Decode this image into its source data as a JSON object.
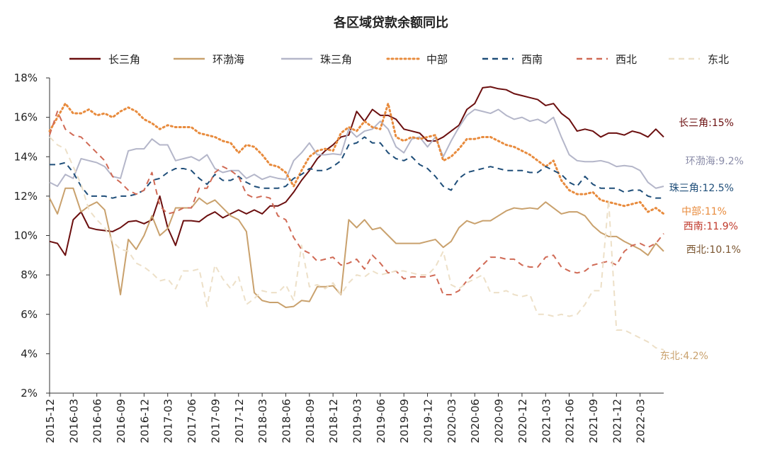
{
  "chart_data": {
    "type": "line",
    "title": "各区域贷款余额同比",
    "xlabel": "",
    "ylabel": "",
    "y_unit": "%",
    "ylim": [
      2,
      18
    ],
    "y_ticks": [
      "2%",
      "4%",
      "6%",
      "8%",
      "10%",
      "12%",
      "14%",
      "16%",
      "18%"
    ],
    "x_tick_labels": [
      "2015-12",
      "2016-03",
      "2016-06",
      "2016-09",
      "2016-12",
      "2017-03",
      "2017-06",
      "2017-09",
      "2017-12",
      "2018-03",
      "2018-06",
      "2018-09",
      "2018-12",
      "2019-03",
      "2019-06",
      "2019-09",
      "2019-12",
      "2020-03",
      "2020-06",
      "2020-09",
      "2020-12",
      "2021-03",
      "2021-06",
      "2021-09",
      "2021-12",
      "2022-03"
    ],
    "x_start": "2015-12",
    "x_end": "2022-04",
    "grid": false,
    "legend_position": "top",
    "series": [
      {
        "name": "长三角",
        "color": "#6b0f0f",
        "style": "solid",
        "end_label": "长三角:15%",
        "values": [
          9.7,
          9.6,
          9.0,
          10.8,
          11.2,
          10.4,
          10.3,
          10.25,
          10.2,
          10.4,
          10.7,
          10.75,
          10.6,
          10.8,
          12.0,
          10.4,
          9.5,
          10.75,
          10.75,
          10.7,
          11.0,
          11.2,
          10.9,
          11.1,
          11.3,
          11.1,
          11.3,
          11.1,
          11.5,
          11.5,
          11.7,
          12.2,
          12.8,
          13.3,
          13.9,
          14.3,
          14.6,
          15.0,
          15.1,
          16.3,
          15.8,
          16.4,
          16.1,
          16.1,
          15.9,
          15.4,
          15.3,
          15.2,
          14.8,
          14.8,
          15.0,
          15.3,
          15.6,
          16.4,
          16.7,
          17.5,
          17.55,
          17.45,
          17.4,
          17.2,
          17.1,
          17.0,
          16.9,
          16.6,
          16.7,
          16.2,
          15.9,
          15.3,
          15.4,
          15.3,
          15.0,
          15.2,
          15.2,
          15.1,
          15.3,
          15.2,
          15.0,
          15.4,
          15.0
        ]
      },
      {
        "name": "环渤海",
        "color": "#c9a16d",
        "style": "solid",
        "end_label": "环渤海:9.2%",
        "values": [
          11.9,
          11.1,
          12.4,
          12.4,
          11.2,
          11.5,
          11.7,
          11.3,
          9.5,
          7.0,
          9.8,
          9.3,
          10.0,
          11.0,
          10.0,
          10.35,
          11.4,
          11.4,
          11.4,
          11.9,
          11.6,
          11.8,
          11.4,
          11.0,
          10.8,
          10.2,
          7.1,
          6.7,
          6.6,
          6.6,
          6.35,
          6.4,
          6.7,
          6.65,
          7.4,
          7.4,
          7.45,
          7.0,
          10.8,
          10.4,
          10.8,
          10.3,
          10.4,
          10.0,
          9.6,
          9.6,
          9.6,
          9.6,
          9.7,
          9.8,
          9.4,
          9.7,
          10.4,
          10.75,
          10.6,
          10.75,
          10.75,
          11.0,
          11.25,
          11.4,
          11.35,
          11.4,
          11.35,
          11.7,
          11.4,
          11.1,
          11.2,
          11.2,
          11.0,
          10.5,
          10.15,
          9.95,
          9.95,
          9.7,
          9.5,
          9.3,
          9.0,
          9.6,
          9.2
        ]
      },
      {
        "name": "珠三角",
        "color": "#b4b6c9",
        "style": "solid",
        "end_label": "珠三角:12.5%",
        "values": [
          12.7,
          12.5,
          13.1,
          12.9,
          13.9,
          13.8,
          13.7,
          13.5,
          13.0,
          12.9,
          14.3,
          14.4,
          14.4,
          14.9,
          14.6,
          14.6,
          13.8,
          13.9,
          14.0,
          13.8,
          14.1,
          13.4,
          13.2,
          13.3,
          13.3,
          12.9,
          13.1,
          12.85,
          13.0,
          12.9,
          12.85,
          13.8,
          14.2,
          14.7,
          14.1,
          14.1,
          14.15,
          14.1,
          15.4,
          15.0,
          15.3,
          15.4,
          15.8,
          15.4,
          14.5,
          14.2,
          14.9,
          15.0,
          14.5,
          15.0,
          14.0,
          14.8,
          15.5,
          16.1,
          16.4,
          16.3,
          16.2,
          16.4,
          16.1,
          15.9,
          16.0,
          15.8,
          15.9,
          15.7,
          16.0,
          15.0,
          14.1,
          13.8,
          13.75,
          13.75,
          13.8,
          13.7,
          13.5,
          13.55,
          13.5,
          13.3,
          12.7,
          12.4,
          12.5
        ]
      },
      {
        "name": "中部",
        "color": "#e88b3d",
        "style": "dotted",
        "end_label": "中部:11%",
        "values": [
          15.3,
          16.0,
          16.7,
          16.2,
          16.2,
          16.4,
          16.1,
          16.2,
          16.0,
          16.3,
          16.5,
          16.3,
          15.9,
          15.7,
          15.4,
          15.6,
          15.5,
          15.5,
          15.5,
          15.2,
          15.1,
          15.0,
          14.8,
          14.7,
          14.2,
          14.6,
          14.5,
          14.1,
          13.6,
          13.5,
          13.2,
          12.5,
          13.3,
          14.0,
          14.3,
          14.4,
          14.3,
          15.2,
          15.5,
          15.3,
          15.8,
          15.5,
          15.4,
          16.7,
          15.0,
          14.8,
          15.0,
          14.9,
          15.0,
          15.1,
          13.8,
          14.0,
          14.4,
          14.9,
          14.9,
          15.0,
          15.0,
          14.8,
          14.6,
          14.5,
          14.3,
          14.1,
          13.8,
          13.5,
          13.8,
          12.8,
          12.3,
          12.1,
          12.1,
          12.2,
          11.8,
          11.7,
          11.6,
          11.5,
          11.6,
          11.7,
          11.2,
          11.4,
          11.1
        ]
      },
      {
        "name": "西南",
        "color": "#1f4e79",
        "style": "dashed",
        "end_label": "西南:11.9%",
        "values": [
          13.6,
          13.6,
          13.7,
          13.2,
          12.5,
          12.0,
          12.0,
          12.0,
          11.9,
          12.0,
          12.0,
          12.1,
          12.3,
          12.8,
          12.9,
          13.2,
          13.4,
          13.4,
          13.3,
          12.9,
          12.6,
          13.1,
          12.8,
          12.8,
          13.0,
          12.7,
          12.5,
          12.4,
          12.4,
          12.4,
          12.5,
          12.9,
          13.1,
          13.4,
          13.3,
          13.3,
          13.5,
          13.8,
          14.6,
          14.7,
          15.0,
          14.7,
          14.7,
          14.2,
          13.9,
          13.8,
          14.0,
          13.6,
          13.4,
          13.0,
          12.5,
          12.3,
          12.9,
          13.2,
          13.3,
          13.4,
          13.5,
          13.4,
          13.3,
          13.3,
          13.3,
          13.2,
          13.2,
          13.5,
          13.3,
          13.1,
          12.7,
          12.5,
          13.0,
          12.6,
          12.4,
          12.4,
          12.4,
          12.2,
          12.3,
          12.3,
          12.0,
          11.9,
          11.9
        ]
      },
      {
        "name": "西北",
        "color": "#d06a55",
        "style": "dashed",
        "end_label": "西北:10.1%",
        "values": [
          15.1,
          16.3,
          15.4,
          15.1,
          15.0,
          14.6,
          14.2,
          13.8,
          13.0,
          12.7,
          12.3,
          12.1,
          12.3,
          13.2,
          11.5,
          11.1,
          11.2,
          11.4,
          11.4,
          12.4,
          12.4,
          13.2,
          13.5,
          13.3,
          13.0,
          12.1,
          11.9,
          12.0,
          11.9,
          11.0,
          10.8,
          9.9,
          9.3,
          9.1,
          8.7,
          8.8,
          8.9,
          8.5,
          8.6,
          8.8,
          8.3,
          9.0,
          8.6,
          8.1,
          8.2,
          7.8,
          7.9,
          7.9,
          7.9,
          8.0,
          7.0,
          7.0,
          7.2,
          7.7,
          8.1,
          8.5,
          8.9,
          8.9,
          8.8,
          8.8,
          8.5,
          8.4,
          8.4,
          8.9,
          9.0,
          8.4,
          8.2,
          8.1,
          8.2,
          8.5,
          8.6,
          8.7,
          8.5,
          9.2,
          9.5,
          9.6,
          9.4,
          9.6,
          10.1
        ]
      },
      {
        "name": "东北",
        "color": "#ede0c8",
        "style": "dashed",
        "end_label": "东北:4.2%",
        "values": [
          15.0,
          14.6,
          14.4,
          13.5,
          12.6,
          11.3,
          10.8,
          10.4,
          9.7,
          9.3,
          9.2,
          8.6,
          8.4,
          8.1,
          7.7,
          7.8,
          7.3,
          8.2,
          8.2,
          8.3,
          6.4,
          8.5,
          7.8,
          7.3,
          7.9,
          6.5,
          6.8,
          7.2,
          7.1,
          7.1,
          7.5,
          6.7,
          9.5,
          7.4,
          7.5,
          7.3,
          7.6,
          7.0,
          7.6,
          8.0,
          7.9,
          8.2,
          8.0,
          8.1,
          8.2,
          8.2,
          8.1,
          8.0,
          8.0,
          8.4,
          9.2,
          7.5,
          7.3,
          7.6,
          7.8,
          8.0,
          7.1,
          7.1,
          7.2,
          7.0,
          6.9,
          7.0,
          6.0,
          6.0,
          5.9,
          6.0,
          5.9,
          6.0,
          6.5,
          7.2,
          7.2,
          11.8,
          5.2,
          5.2,
          5.0,
          4.8,
          4.6,
          4.3,
          4.2
        ]
      }
    ]
  }
}
